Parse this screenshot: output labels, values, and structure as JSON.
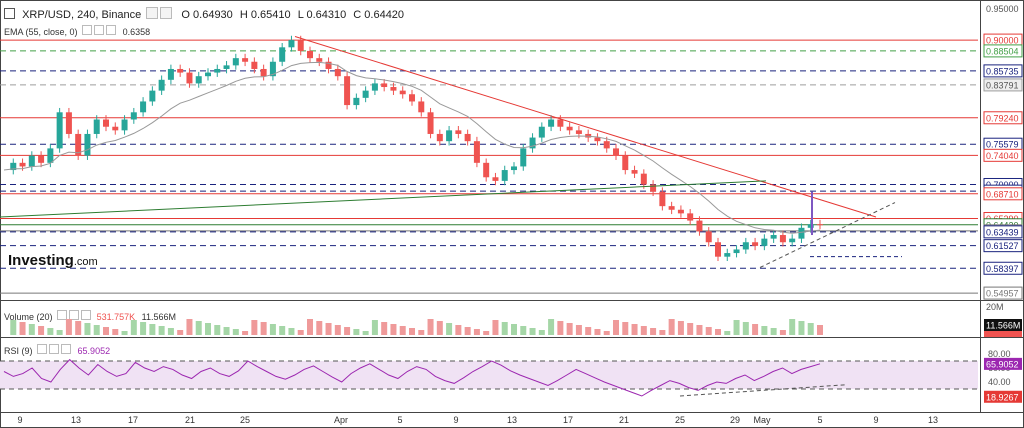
{
  "header": {
    "symbol": "XRP/USD, 240, Binance",
    "open": "O 0.64930",
    "high": "H 0.65410",
    "low": "L 0.64310",
    "close": "C 0.64420"
  },
  "ema": {
    "label": "EMA (55, close, 0)",
    "value": "0.6358"
  },
  "logo": {
    "brand": "Investing",
    "suffix": ".com"
  },
  "volume": {
    "label": "Volume (20)",
    "ma_value": "531.757K",
    "value": "11.566M"
  },
  "rsi": {
    "label": "RSI (9)",
    "value": "65.9052"
  },
  "colors": {
    "up": "#26a69a",
    "down": "#ef5350",
    "ema": "#999999",
    "rsi": "#9c27b0",
    "rsi_band": "#f0e2f4"
  },
  "chart_data": [
    {
      "type": "candlestick",
      "title": "XRP/USD, 240, Binance",
      "x_ticks": [
        "9",
        "13",
        "17",
        "21",
        "25",
        "Apr",
        "5",
        "9",
        "13",
        "17",
        "21",
        "25",
        "29",
        "May",
        "5",
        "9",
        "13"
      ],
      "ylim": [
        0.54,
        0.95
      ],
      "y_ticks": [
        "0.95000",
        "0.54957"
      ],
      "last_price": 0.6442,
      "horizontal_levels": [
        {
          "value": 0.9,
          "label": "0.90000",
          "style": "solid",
          "color": "#e53935"
        },
        {
          "value": 0.88504,
          "label": "0.88504",
          "style": "dashed",
          "color": "#43a047"
        },
        {
          "value": 0.85735,
          "label": "0.85735",
          "style": "dashed",
          "color": "#1a237e"
        },
        {
          "value": 0.83791,
          "label": "0.83791",
          "style": "dashed",
          "color": "#9e9e9e"
        },
        {
          "value": 0.7924,
          "label": "0.79240",
          "style": "solid",
          "color": "#e53935"
        },
        {
          "value": 0.75579,
          "label": "0.75579",
          "style": "dashed",
          "color": "#1a237e"
        },
        {
          "value": 0.7404,
          "label": "0.74040",
          "style": "solid",
          "color": "#e53935"
        },
        {
          "value": 0.7,
          "label": "0.70000",
          "style": "dashed",
          "color": "#1a237e"
        },
        {
          "value": 0.69077,
          "label": "0.69077",
          "style": "dashed",
          "color": "#1a237e"
        },
        {
          "value": 0.6871,
          "label": "0.68710",
          "style": "solid",
          "color": "#e53935"
        },
        {
          "value": 0.6529,
          "label": "0.65290",
          "style": "solid",
          "color": "#e53935"
        },
        {
          "value": 0.6442,
          "label": "0.64420",
          "style": "solid",
          "color": "#2e7d32"
        },
        {
          "value": 0.6358,
          "label": "0.63580",
          "style": "solid",
          "color": "#777777"
        },
        {
          "value": 0.63439,
          "label": "0.63439",
          "style": "dashed",
          "color": "#1a237e"
        },
        {
          "value": 0.61527,
          "label": "0.61527",
          "style": "dashed",
          "color": "#1a237e"
        },
        {
          "value": 0.58397,
          "label": "0.58397",
          "style": "dashed",
          "color": "#1a237e"
        },
        {
          "value": 0.54957,
          "label": "0.54957",
          "style": "solid",
          "color": "#777777"
        }
      ],
      "close_path": [
        0.72,
        0.73,
        0.725,
        0.74,
        0.73,
        0.75,
        0.8,
        0.77,
        0.74,
        0.77,
        0.79,
        0.78,
        0.775,
        0.79,
        0.8,
        0.815,
        0.83,
        0.845,
        0.86,
        0.855,
        0.84,
        0.85,
        0.855,
        0.86,
        0.865,
        0.875,
        0.87,
        0.86,
        0.85,
        0.87,
        0.89,
        0.9,
        0.885,
        0.875,
        0.87,
        0.86,
        0.85,
        0.81,
        0.82,
        0.83,
        0.84,
        0.835,
        0.83,
        0.825,
        0.815,
        0.8,
        0.77,
        0.76,
        0.775,
        0.77,
        0.76,
        0.73,
        0.71,
        0.705,
        0.72,
        0.725,
        0.75,
        0.765,
        0.78,
        0.79,
        0.78,
        0.775,
        0.77,
        0.765,
        0.76,
        0.75,
        0.74,
        0.72,
        0.715,
        0.7,
        0.69,
        0.67,
        0.665,
        0.66,
        0.65,
        0.635,
        0.62,
        0.6,
        0.605,
        0.61,
        0.62,
        0.615,
        0.625,
        0.63,
        0.62,
        0.625,
        0.64,
        0.645,
        0.644
      ]
    },
    {
      "type": "bar",
      "title": "Volume (20)",
      "ylim": [
        0,
        20000000
      ],
      "y_ticks": [
        "20M"
      ],
      "ma": 531757,
      "last": 11566000
    },
    {
      "type": "line",
      "title": "RSI (9)",
      "ylim": [
        0,
        100
      ],
      "y_ticks": [
        80,
        60,
        40,
        20
      ],
      "bands": [
        30,
        70
      ],
      "last": 65.9052,
      "min_label": "18.9267",
      "values": [
        55,
        48,
        52,
        60,
        45,
        40,
        58,
        72,
        60,
        50,
        65,
        55,
        48,
        52,
        68,
        60,
        55,
        62,
        58,
        50,
        45,
        55,
        60,
        52,
        48,
        56,
        70,
        62,
        55,
        48,
        44,
        50,
        58,
        63,
        55,
        47,
        40,
        52,
        60,
        66,
        58,
        50,
        45,
        55,
        62,
        58,
        48,
        42,
        38,
        46,
        55,
        62,
        70,
        64,
        56,
        50,
        45,
        40,
        35,
        42,
        50,
        58,
        52,
        46,
        40,
        35,
        30,
        25,
        20,
        28,
        35,
        42,
        38,
        32,
        28,
        35,
        40,
        38,
        45,
        50,
        42,
        48,
        55,
        60,
        52,
        58,
        62,
        66
      ]
    }
  ]
}
